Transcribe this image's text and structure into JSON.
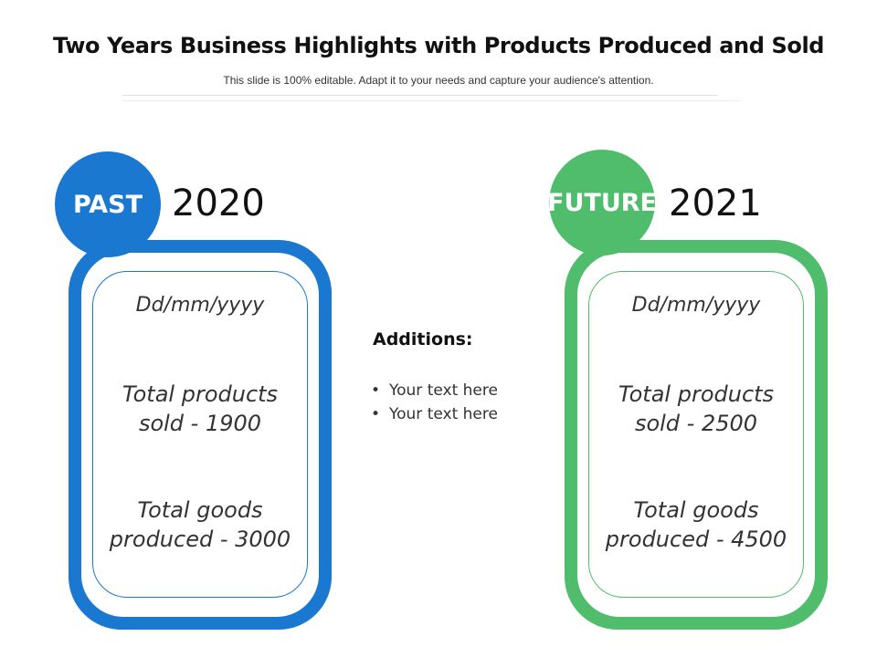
{
  "header": {
    "title": "Two Years Business Highlights with Products Produced and Sold",
    "subtitle": "This slide is 100% editable. Adapt it to your needs and capture your audience's attention."
  },
  "past": {
    "label": "PAST",
    "year": "2020",
    "date": "Dd/mm/yyyy",
    "sold_line1": "Total products",
    "sold_line2": "sold - 1900",
    "produced_line1": "Total goods",
    "produced_line2": "produced - 3000",
    "color": "#1a78d0"
  },
  "future": {
    "label": "FUTURE",
    "year": "2021",
    "date": "Dd/mm/yyyy",
    "sold_line1": "Total products",
    "sold_line2": "sold - 2500",
    "produced_line1": "Total goods",
    "produced_line2": "produced - 4500",
    "color": "#4fbd6b"
  },
  "additions": {
    "title": "Additions:",
    "items": [
      "Your text here",
      "Your text here"
    ]
  }
}
